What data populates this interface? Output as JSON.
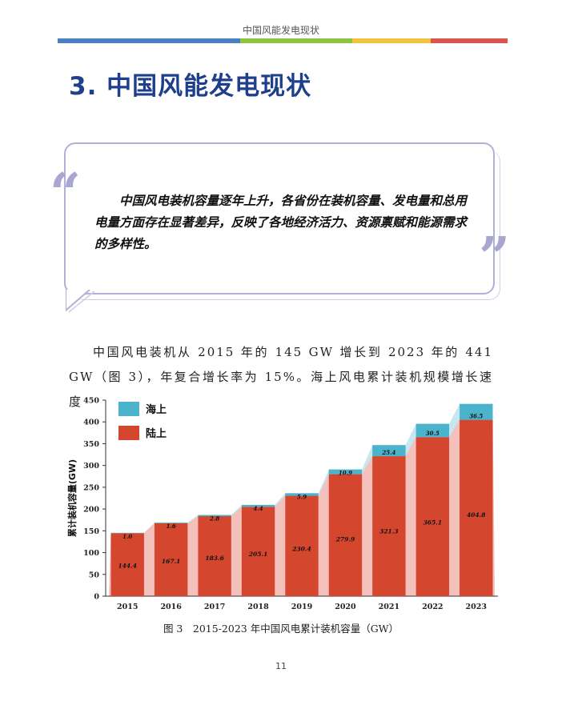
{
  "header": {
    "running_title": "中国风能发电现状",
    "bar_colors": [
      "#4a7fc1",
      "#8cc63f",
      "#f0c43c",
      "#d9534f"
    ]
  },
  "section": {
    "title": "3. 中国风能发电现状"
  },
  "quote": {
    "open_mark": "“",
    "close_mark": "”",
    "text": "中国风电装机容量逐年上升，各省份在装机容量、发电量和总用电量方面存在显著差异，反映了各地经济活力、资源禀赋和能源需求的多样性。"
  },
  "body": {
    "paragraph": "中国风电装机从 2015 年的 145 GW 增长到 2023 年的 441 GW（图 3），年复合增长率为 15%。海上风电累计装机规模增长速度"
  },
  "chart_data": {
    "type": "bar",
    "stacked": true,
    "categories": [
      "2015",
      "2016",
      "2017",
      "2018",
      "2019",
      "2020",
      "2021",
      "2022",
      "2023"
    ],
    "series": [
      {
        "name": "陆上",
        "color": "#d5462f",
        "values": [
          144.4,
          167.1,
          183.6,
          205.1,
          230.4,
          279.9,
          321.3,
          365.1,
          404.8
        ],
        "labels": [
          "144.4",
          "167.1",
          "183.6",
          "205.1",
          "230.4",
          "279.9",
          "321.3",
          "365.1",
          "404.8"
        ]
      },
      {
        "name": "海上",
        "color": "#4bb3cc",
        "values": [
          1.0,
          1.6,
          2.8,
          4.4,
          5.9,
          10.9,
          25.4,
          30.5,
          36.5
        ],
        "labels": [
          "1.0",
          "1.6",
          "2.8",
          "4.4",
          "5.9",
          "10.9",
          "25.4",
          "30.5",
          "36.5"
        ]
      }
    ],
    "ylabel": "累计装机容量(GW)",
    "ylim": [
      0,
      450
    ],
    "yticks": [
      "0",
      "50",
      "100",
      "150",
      "200",
      "250",
      "300",
      "350",
      "400",
      "450"
    ],
    "legend_order": [
      "海上",
      "陆上"
    ],
    "legend_position": "top-left",
    "grid": false
  },
  "figure": {
    "caption": "图 3　2015-2023 年中国风电累计装机容量（GW）"
  },
  "page": {
    "number": "11"
  }
}
